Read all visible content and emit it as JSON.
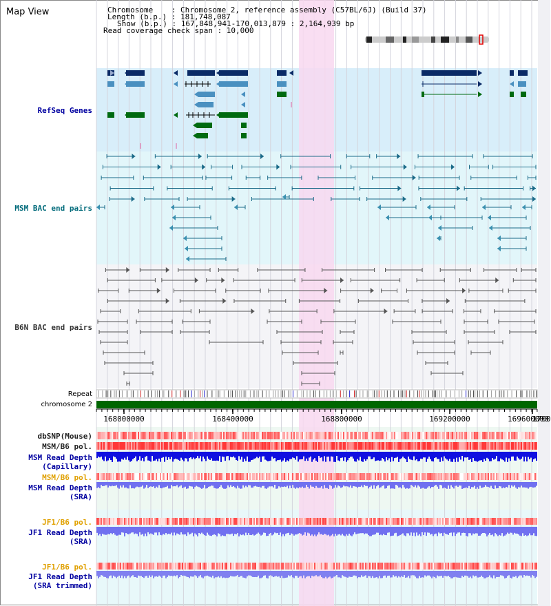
{
  "title": "Map View",
  "info": {
    "chromosome": "Chromosome    : Chromosome 2, reference assembly (C57BL/6J) (Build 37)",
    "length": "Length (b.p.) : 181,748,087",
    "show": "Show (b.p.) : 167,848,941-170,013,879 : 2,164,939 bp",
    "coverage": "Read coverage check span : 10,000"
  },
  "tracks": {
    "refseq": "RefSeq Genes",
    "msm_bac": "MSM BAC end pairs",
    "b6n_bac": "B6N BAC end pairs",
    "repeat": "Repeat",
    "chromosome": "chromosome 2",
    "dbsnp": "dbSNP(Mouse)",
    "msm_b6_pol1": "MSM/B6 pol.",
    "msm_read_depth_cap_1": "MSM Read Depth",
    "msm_read_depth_cap_2": "(Capillary)",
    "msm_b6_pol2": "MSM/B6 pol.",
    "msm_read_depth_sra_1": "MSM Read Depth",
    "msm_read_depth_sra_2": "(SRA)",
    "jf1_b6_pol1": "JF1/B6 pol.",
    "jf1_read_depth_sra_1": "JF1 Read Depth",
    "jf1_read_depth_sra_2": "(SRA)",
    "jf1_b6_pol2": "JF1/B6 pol.",
    "jf1_read_depth_trim_1": "JF1 Read Depth",
    "jf1_read_depth_trim_2": "(SRA trimmed)"
  },
  "axis_ticks": [
    "168000000",
    "168400000",
    "168800000",
    "169200000",
    "169600000",
    "1700"
  ],
  "colors": {
    "refseq_bg": "#d8eefa",
    "msm_bg": "#e2f6fa",
    "b6n_bg": "#f4f4f7",
    "highlight": "#f8d8f0",
    "chromosome": "#006600",
    "navy_gene": "#0a2a66",
    "light_gene": "#4a90c0",
    "green_gene": "#006a10",
    "depth_blue": "#1010e0",
    "depth_lavender": "#7070f0"
  }
}
